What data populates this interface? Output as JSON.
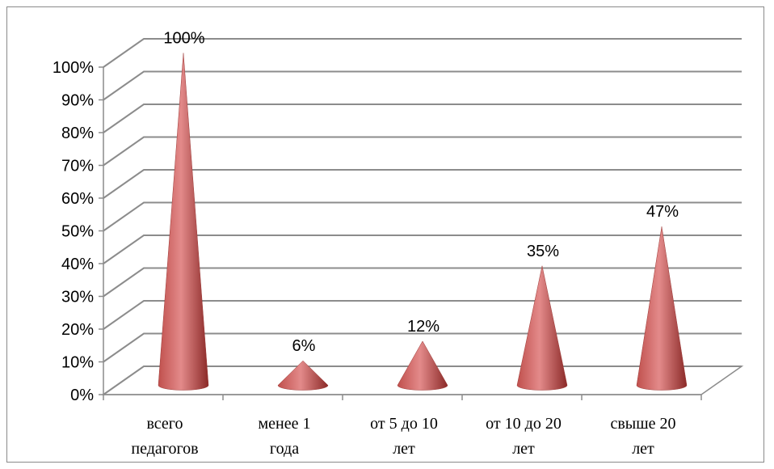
{
  "chart_data": {
    "type": "bar",
    "style": "3d-cone",
    "categories": [
      [
        "всего",
        "педагогов"
      ],
      [
        "менее 1",
        "года"
      ],
      [
        "от 5 до 10",
        "лет"
      ],
      [
        "от 10 до 20",
        "лет"
      ],
      [
        "свыше 20",
        "лет"
      ]
    ],
    "values": [
      100,
      6,
      12,
      35,
      47
    ],
    "data_labels": [
      "100%",
      "6%",
      "12%",
      "35%",
      "47%"
    ],
    "ylim": [
      0,
      100
    ],
    "y_ticks": [
      "0%",
      "10%",
      "20%",
      "30%",
      "40%",
      "50%",
      "60%",
      "70%",
      "80%",
      "90%",
      "100%"
    ],
    "grid": true,
    "legend": "none",
    "colors": {
      "cone_light": "#e38a8a",
      "cone_mid": "#c0504d",
      "cone_dark": "#8b2a28",
      "grid": "#8c8c8c"
    }
  }
}
